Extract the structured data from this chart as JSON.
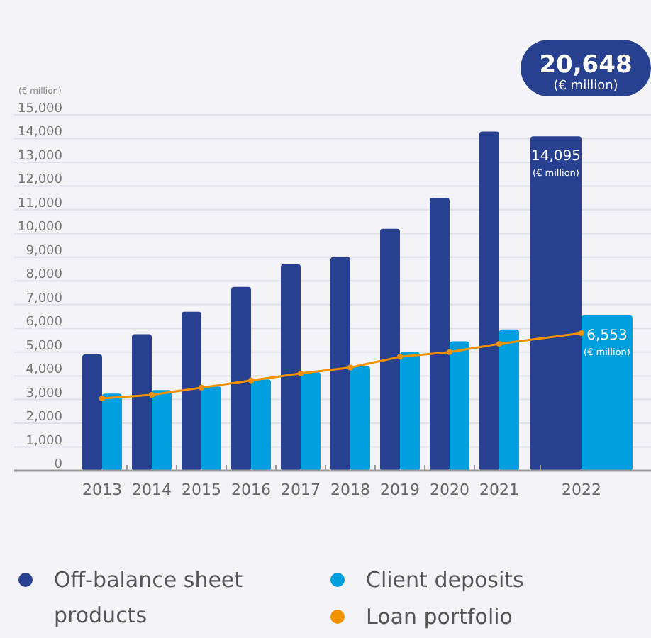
{
  "chart_data": {
    "type": "bar",
    "ylabel": "(€ million)",
    "categories": [
      "2013",
      "2014",
      "2015",
      "2016",
      "2017",
      "2018",
      "2019",
      "2020",
      "2021",
      "2022"
    ],
    "series": [
      {
        "name": "Off-balance sheet products",
        "color": "#27408f",
        "values": [
          4900,
          5750,
          6700,
          7750,
          8700,
          9000,
          10200,
          11500,
          14300,
          14095
        ],
        "value_labels": [
          null,
          null,
          null,
          null,
          null,
          null,
          null,
          null,
          null,
          "14,095 (€ million)"
        ]
      },
      {
        "name": "Client deposits",
        "color": "#00a0e0",
        "values": [
          3250,
          3400,
          3550,
          3850,
          4150,
          4400,
          5000,
          5450,
          5950,
          6553
        ],
        "value_labels": [
          null,
          null,
          null,
          null,
          null,
          null,
          null,
          null,
          null,
          "6,553 (€ million)"
        ]
      },
      {
        "name": "Loan portfolio",
        "type": "line",
        "color": "#f39200",
        "marker": "circle",
        "values": [
          3050,
          3200,
          3500,
          3800,
          4100,
          4350,
          4800,
          5000,
          5350,
          5800
        ]
      }
    ],
    "ylim": [
      0,
      15000
    ],
    "yticks": [
      {
        "value": 0,
        "label": "0"
      },
      {
        "value": 1000,
        "label": "1,000"
      },
      {
        "value": 2000,
        "label": "2,000"
      },
      {
        "value": 3000,
        "label": "3,000"
      },
      {
        "value": 4000,
        "label": "4,000"
      },
      {
        "value": 5000,
        "label": "5,000"
      },
      {
        "value": 6000,
        "label": "6,000"
      },
      {
        "value": 7000,
        "label": "7,000"
      },
      {
        "value": 8000,
        "label": "8,000"
      },
      {
        "value": 9000,
        "label": "9,000"
      },
      {
        "value": 10000,
        "label": "10,000"
      },
      {
        "value": 11000,
        "label": "11,000"
      },
      {
        "value": 12000,
        "label": "12,000"
      },
      {
        "value": 13000,
        "label": "13,000"
      },
      {
        "value": 14000,
        "label": "14,000"
      },
      {
        "value": 15000,
        "label": "15,000"
      }
    ],
    "grid": "y",
    "legend": "bottom",
    "annotations": [
      "20,648 (€ million)"
    ]
  }
}
